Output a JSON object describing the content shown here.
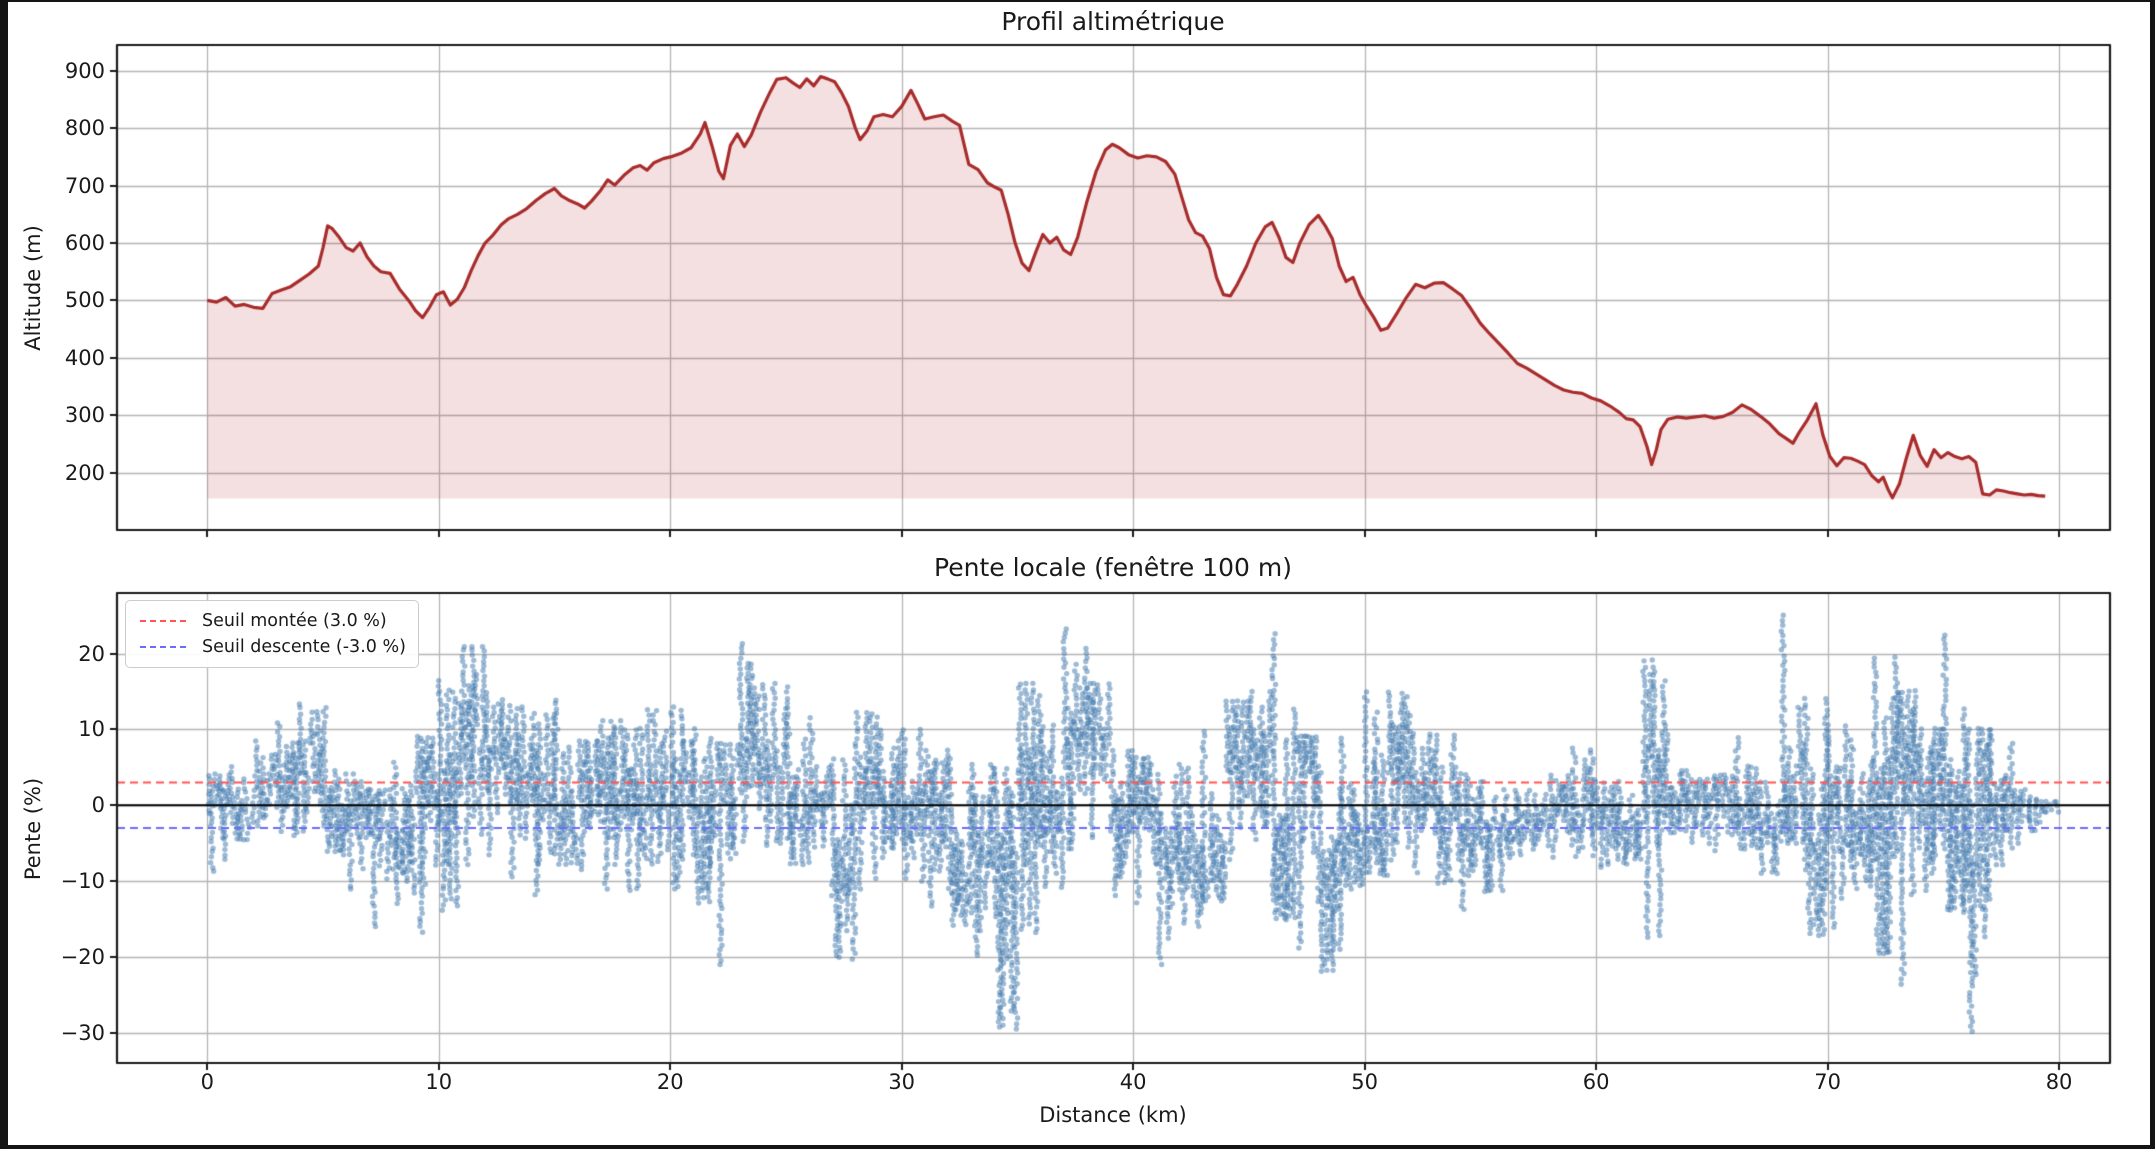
{
  "figure": {
    "background": "#ffffff",
    "outer_border": "#141414",
    "grid_color": "#b4b4b4",
    "frame_color": "#1a1a1a"
  },
  "chart_data": [
    {
      "type": "area",
      "title": "Profil altimétrique",
      "ylabel": "Altitude (m)",
      "xlabel": "",
      "line_color": "#a82b2b",
      "fill_color": "rgba(178,34,34,0.14)",
      "ylim": [
        100,
        945
      ],
      "xlim": [
        -3.9,
        82.2
      ],
      "yticks": [
        200,
        300,
        400,
        500,
        600,
        700,
        800,
        900
      ],
      "xticks": [
        0,
        10,
        20,
        30,
        40,
        50,
        60,
        70,
        80
      ],
      "grid": true,
      "baseline": 155,
      "points": [
        [
          0,
          500
        ],
        [
          0.4,
          497
        ],
        [
          0.8,
          505
        ],
        [
          1.2,
          490
        ],
        [
          1.6,
          493
        ],
        [
          2.0,
          488
        ],
        [
          2.4,
          486
        ],
        [
          2.8,
          512
        ],
        [
          3.2,
          518
        ],
        [
          3.6,
          524
        ],
        [
          4.0,
          535
        ],
        [
          4.4,
          546
        ],
        [
          4.8,
          560
        ],
        [
          5.0,
          592
        ],
        [
          5.2,
          630
        ],
        [
          5.4,
          625
        ],
        [
          5.7,
          610
        ],
        [
          6.0,
          592
        ],
        [
          6.3,
          586
        ],
        [
          6.6,
          600
        ],
        [
          6.9,
          576
        ],
        [
          7.2,
          560
        ],
        [
          7.5,
          550
        ],
        [
          7.9,
          547
        ],
        [
          8.3,
          520
        ],
        [
          8.7,
          500
        ],
        [
          9.0,
          482
        ],
        [
          9.3,
          470
        ],
        [
          9.6,
          488
        ],
        [
          9.9,
          510
        ],
        [
          10.2,
          515
        ],
        [
          10.5,
          492
        ],
        [
          10.8,
          502
        ],
        [
          11.1,
          522
        ],
        [
          11.4,
          552
        ],
        [
          11.7,
          578
        ],
        [
          12.0,
          600
        ],
        [
          12.3,
          612
        ],
        [
          12.7,
          632
        ],
        [
          13.0,
          642
        ],
        [
          13.4,
          650
        ],
        [
          13.8,
          660
        ],
        [
          14.2,
          674
        ],
        [
          14.6,
          686
        ],
        [
          15.0,
          695
        ],
        [
          15.3,
          682
        ],
        [
          15.6,
          675
        ],
        [
          16.0,
          668
        ],
        [
          16.3,
          661
        ],
        [
          16.6,
          673
        ],
        [
          17.0,
          692
        ],
        [
          17.3,
          710
        ],
        [
          17.6,
          701
        ],
        [
          18.0,
          718
        ],
        [
          18.4,
          731
        ],
        [
          18.7,
          735
        ],
        [
          19.0,
          727
        ],
        [
          19.3,
          740
        ],
        [
          19.7,
          747
        ],
        [
          20.1,
          751
        ],
        [
          20.5,
          757
        ],
        [
          20.9,
          766
        ],
        [
          21.3,
          790
        ],
        [
          21.5,
          810
        ],
        [
          21.8,
          770
        ],
        [
          22.1,
          725
        ],
        [
          22.3,
          712
        ],
        [
          22.6,
          770
        ],
        [
          22.9,
          790
        ],
        [
          23.2,
          768
        ],
        [
          23.5,
          788
        ],
        [
          23.9,
          828
        ],
        [
          24.3,
          862
        ],
        [
          24.6,
          885
        ],
        [
          25.0,
          888
        ],
        [
          25.3,
          879
        ],
        [
          25.6,
          871
        ],
        [
          25.9,
          886
        ],
        [
          26.2,
          874
        ],
        [
          26.5,
          890
        ],
        [
          26.8,
          886
        ],
        [
          27.1,
          881
        ],
        [
          27.4,
          862
        ],
        [
          27.7,
          838
        ],
        [
          28.0,
          800
        ],
        [
          28.2,
          780
        ],
        [
          28.5,
          795
        ],
        [
          28.8,
          820
        ],
        [
          29.2,
          824
        ],
        [
          29.6,
          820
        ],
        [
          30.0,
          838
        ],
        [
          30.4,
          866
        ],
        [
          30.7,
          842
        ],
        [
          31.0,
          816
        ],
        [
          31.4,
          820
        ],
        [
          31.8,
          823
        ],
        [
          32.2,
          812
        ],
        [
          32.5,
          805
        ],
        [
          32.9,
          737
        ],
        [
          33.3,
          728
        ],
        [
          33.7,
          705
        ],
        [
          34.0,
          698
        ],
        [
          34.3,
          692
        ],
        [
          34.6,
          650
        ],
        [
          34.9,
          600
        ],
        [
          35.2,
          565
        ],
        [
          35.5,
          552
        ],
        [
          35.8,
          585
        ],
        [
          36.1,
          615
        ],
        [
          36.4,
          600
        ],
        [
          36.7,
          610
        ],
        [
          37.0,
          588
        ],
        [
          37.3,
          580
        ],
        [
          37.6,
          610
        ],
        [
          38.0,
          672
        ],
        [
          38.4,
          725
        ],
        [
          38.8,
          762
        ],
        [
          39.1,
          772
        ],
        [
          39.4,
          766
        ],
        [
          39.8,
          754
        ],
        [
          40.2,
          748
        ],
        [
          40.6,
          752
        ],
        [
          41.0,
          750
        ],
        [
          41.4,
          742
        ],
        [
          41.8,
          720
        ],
        [
          42.1,
          680
        ],
        [
          42.4,
          640
        ],
        [
          42.7,
          618
        ],
        [
          43.0,
          612
        ],
        [
          43.3,
          590
        ],
        [
          43.6,
          540
        ],
        [
          43.9,
          510
        ],
        [
          44.2,
          508
        ],
        [
          44.5,
          528
        ],
        [
          44.9,
          560
        ],
        [
          45.3,
          600
        ],
        [
          45.7,
          628
        ],
        [
          46.0,
          636
        ],
        [
          46.3,
          610
        ],
        [
          46.6,
          575
        ],
        [
          46.9,
          566
        ],
        [
          47.2,
          600
        ],
        [
          47.6,
          632
        ],
        [
          48.0,
          648
        ],
        [
          48.3,
          630
        ],
        [
          48.6,
          608
        ],
        [
          48.9,
          560
        ],
        [
          49.2,
          533
        ],
        [
          49.5,
          540
        ],
        [
          49.8,
          510
        ],
        [
          50.1,
          489
        ],
        [
          50.4,
          470
        ],
        [
          50.7,
          448
        ],
        [
          51.0,
          452
        ],
        [
          51.4,
          478
        ],
        [
          51.8,
          505
        ],
        [
          52.2,
          528
        ],
        [
          52.6,
          522
        ],
        [
          53.0,
          530
        ],
        [
          53.4,
          531
        ],
        [
          53.8,
          520
        ],
        [
          54.2,
          508
        ],
        [
          54.6,
          485
        ],
        [
          55.0,
          460
        ],
        [
          55.4,
          442
        ],
        [
          55.8,
          425
        ],
        [
          56.2,
          408
        ],
        [
          56.6,
          390
        ],
        [
          57.0,
          382
        ],
        [
          57.4,
          372
        ],
        [
          57.8,
          362
        ],
        [
          58.2,
          352
        ],
        [
          58.6,
          344
        ],
        [
          59.0,
          340
        ],
        [
          59.4,
          338
        ],
        [
          59.8,
          330
        ],
        [
          60.2,
          325
        ],
        [
          60.6,
          316
        ],
        [
          61.0,
          305
        ],
        [
          61.3,
          294
        ],
        [
          61.6,
          292
        ],
        [
          61.9,
          280
        ],
        [
          62.2,
          245
        ],
        [
          62.4,
          214
        ],
        [
          62.6,
          240
        ],
        [
          62.8,
          275
        ],
        [
          63.1,
          293
        ],
        [
          63.5,
          297
        ],
        [
          63.9,
          295
        ],
        [
          64.3,
          297
        ],
        [
          64.7,
          299
        ],
        [
          65.1,
          295
        ],
        [
          65.5,
          298
        ],
        [
          65.9,
          305
        ],
        [
          66.3,
          318
        ],
        [
          66.7,
          310
        ],
        [
          67.1,
          298
        ],
        [
          67.5,
          285
        ],
        [
          67.9,
          268
        ],
        [
          68.3,
          257
        ],
        [
          68.5,
          251
        ],
        [
          68.8,
          272
        ],
        [
          69.1,
          290
        ],
        [
          69.5,
          320
        ],
        [
          69.8,
          265
        ],
        [
          70.1,
          228
        ],
        [
          70.4,
          212
        ],
        [
          70.7,
          226
        ],
        [
          71.0,
          225
        ],
        [
          71.3,
          220
        ],
        [
          71.6,
          214
        ],
        [
          71.9,
          195
        ],
        [
          72.2,
          184
        ],
        [
          72.4,
          192
        ],
        [
          72.6,
          172
        ],
        [
          72.8,
          156
        ],
        [
          73.1,
          180
        ],
        [
          73.4,
          225
        ],
        [
          73.7,
          265
        ],
        [
          74.0,
          230
        ],
        [
          74.3,
          211
        ],
        [
          74.6,
          240
        ],
        [
          74.9,
          226
        ],
        [
          75.2,
          235
        ],
        [
          75.5,
          228
        ],
        [
          75.8,
          224
        ],
        [
          76.1,
          228
        ],
        [
          76.4,
          218
        ],
        [
          76.7,
          163
        ],
        [
          77.0,
          161
        ],
        [
          77.3,
          170
        ],
        [
          77.6,
          168
        ],
        [
          77.9,
          165
        ],
        [
          78.2,
          163
        ],
        [
          78.5,
          161
        ],
        [
          78.8,
          162
        ],
        [
          79.1,
          160
        ],
        [
          79.4,
          159
        ]
      ]
    },
    {
      "type": "scatter",
      "title": "Pente locale (fenêtre 100 m)",
      "ylabel": "Pente (%)",
      "xlabel": "Distance (km)",
      "dot_color": "#3b76ac",
      "dot_opacity": 0.5,
      "ylim": [
        -34,
        28
      ],
      "xlim": [
        -3.9,
        82.2
      ],
      "yticks": [
        -30,
        -20,
        -10,
        0,
        10,
        20
      ],
      "xticks": [
        0,
        10,
        20,
        30,
        40,
        50,
        60,
        70,
        80
      ],
      "grid": true,
      "zero_line": true,
      "seed": 42,
      "thresholds": [
        {
          "label": "Seuil montée (3.0 %)",
          "value": 3.0,
          "color": "#ff5555"
        },
        {
          "label": "Seuil descente (-3.0 %)",
          "value": -3.0,
          "color": "#6b6bff"
        }
      ],
      "slope_envelope": {
        "bin_km": 1,
        "min": [
          -9,
          -5,
          -3,
          -4,
          -3.5,
          -6.5,
          -11.5,
          -16.7,
          -13,
          -17,
          -14,
          -8,
          -6.5,
          -10,
          -12,
          -8,
          -9.2,
          -11.5,
          -11.5,
          -8,
          -11,
          -13,
          -21.6,
          -5,
          -6,
          -8,
          -6,
          -20.4,
          -11.1,
          -7.5,
          -10,
          -14,
          -16.2,
          -20,
          -29.5,
          -17,
          -11.1,
          -6,
          -5,
          -12.2,
          -13,
          -21,
          -16,
          -13,
          -7.5,
          -5,
          -15,
          -19,
          -22,
          -11,
          -9.4,
          -7.5,
          -9,
          -10.4,
          -14.5,
          -11.5,
          -7,
          -6.5,
          -7,
          -7,
          -8.5,
          -8,
          -17.5,
          -4,
          -5.5,
          -6,
          -6,
          -9.5,
          -5,
          -17.5,
          -16.5,
          -11,
          -20,
          -24,
          -11.5,
          -14,
          -30,
          -8,
          -5,
          -2.5
        ],
        "max": [
          4,
          5,
          8.5,
          11,
          13.4,
          13,
          4,
          2,
          5.5,
          9,
          16.5,
          21,
          15,
          13,
          12,
          14,
          8.5,
          11,
          10,
          12.5,
          13,
          10,
          8,
          21.3,
          16,
          15.5,
          11.4,
          6,
          12.2,
          10,
          10,
          7.2,
          6.2,
          5.5,
          5,
          16,
          10.4,
          23.4,
          16,
          7.2,
          6.2,
          4,
          5.5,
          9.7,
          13.7,
          15,
          22.5,
          9,
          5,
          9,
          15,
          15,
          9.5,
          9.4,
          4,
          3,
          2,
          2,
          4,
          7.5,
          3,
          3,
          19,
          10,
          3.5,
          4,
          9,
          3,
          25,
          14,
          10.5,
          8.5,
          19.5,
          15,
          10,
          22.5,
          10,
          10,
          2,
          0.5
        ]
      }
    }
  ]
}
